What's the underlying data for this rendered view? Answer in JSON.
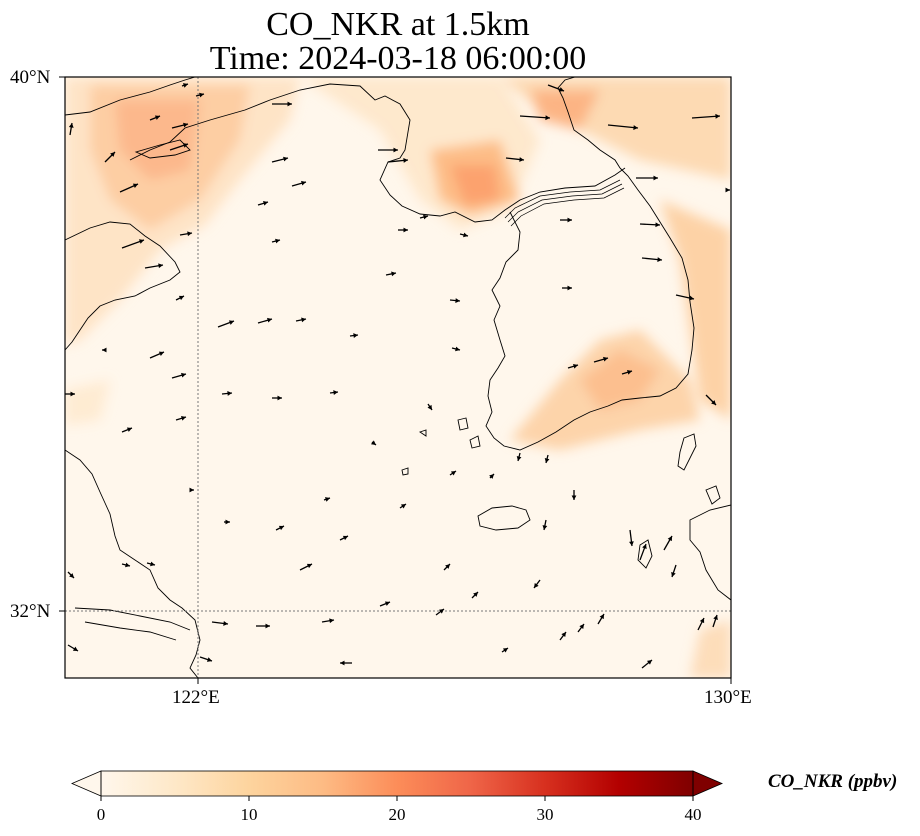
{
  "map": {
    "title_line1": "CO_NKR at 1.5km",
    "title_line2": "Time: 2024-03-18 06:00:00",
    "lat_labels": [
      "40°N",
      "32°N"
    ],
    "lon_labels": [
      "122°E",
      "130°E"
    ],
    "extent": {
      "lon_min": 120,
      "lon_max": 130,
      "lat_min": 31,
      "lat_max": 40
    },
    "gridlines": {
      "lon": [
        122
      ],
      "lat": [
        32
      ]
    }
  },
  "colorbar": {
    "label": "CO_NKR (ppbv)",
    "ticks": [
      "0",
      "10",
      "20",
      "30",
      "40"
    ],
    "min": 0,
    "max": 40,
    "colormap": "OrRd",
    "colors": [
      "#fff7ec",
      "#fee8c8",
      "#fdd49e",
      "#fdbb84",
      "#fc8d59",
      "#ef6548",
      "#d7301f",
      "#b30000",
      "#7f0000"
    ],
    "extend": "both"
  }
}
